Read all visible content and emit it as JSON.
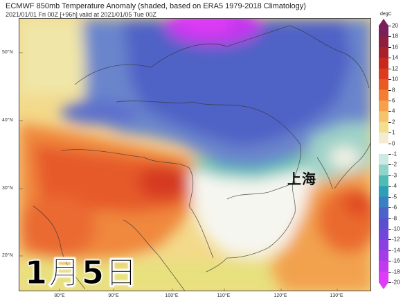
{
  "header": {
    "title": "ECMWF 850mb Temperature Anomaly (shaded, based on ERA5 1979-2018 Climatology)",
    "subtitle": "2021/01/01 Fri 00Z [+96h] valid at 2021/01/05 Tue 00Z"
  },
  "map": {
    "lat_labels": [
      "50°N",
      "40°N",
      "30°N",
      "20°N"
    ],
    "lon_labels": [
      "80°E",
      "90°E",
      "100°E",
      "110°E",
      "120°E",
      "130°E"
    ],
    "city_label": "上海",
    "date_overlay": "1月5日"
  },
  "colorbar": {
    "unit": "degC",
    "ticks": [
      "20",
      "18",
      "16",
      "14",
      "12",
      "10",
      "8",
      "6",
      "4",
      "2",
      "1",
      "0",
      "-1",
      "-2",
      "-3",
      "-4",
      "-5",
      "-6",
      "-8",
      "-10",
      "-12",
      "-14",
      "-16",
      "-18",
      "-20"
    ],
    "colors": [
      "#7a1e5c",
      "#8f1f3f",
      "#a8202a",
      "#c62a1f",
      "#dc3b1c",
      "#ea5a23",
      "#f27d33",
      "#f6a04a",
      "#f7c36a",
      "#f2de8c",
      "#f3ecd0",
      "#ffffff",
      "#cde9e4",
      "#8fd4c8",
      "#4fbcb3",
      "#2f9fb7",
      "#3a80c2",
      "#4a64c7",
      "#5b4fcf",
      "#7246d8",
      "#8b3fe0",
      "#a63be8",
      "#c23aef",
      "#dc3df5"
    ],
    "color_notes": {
      "warm": "#e9582a",
      "cold": "#4a64c7",
      "extreme_cold": "#d63ff2"
    }
  }
}
